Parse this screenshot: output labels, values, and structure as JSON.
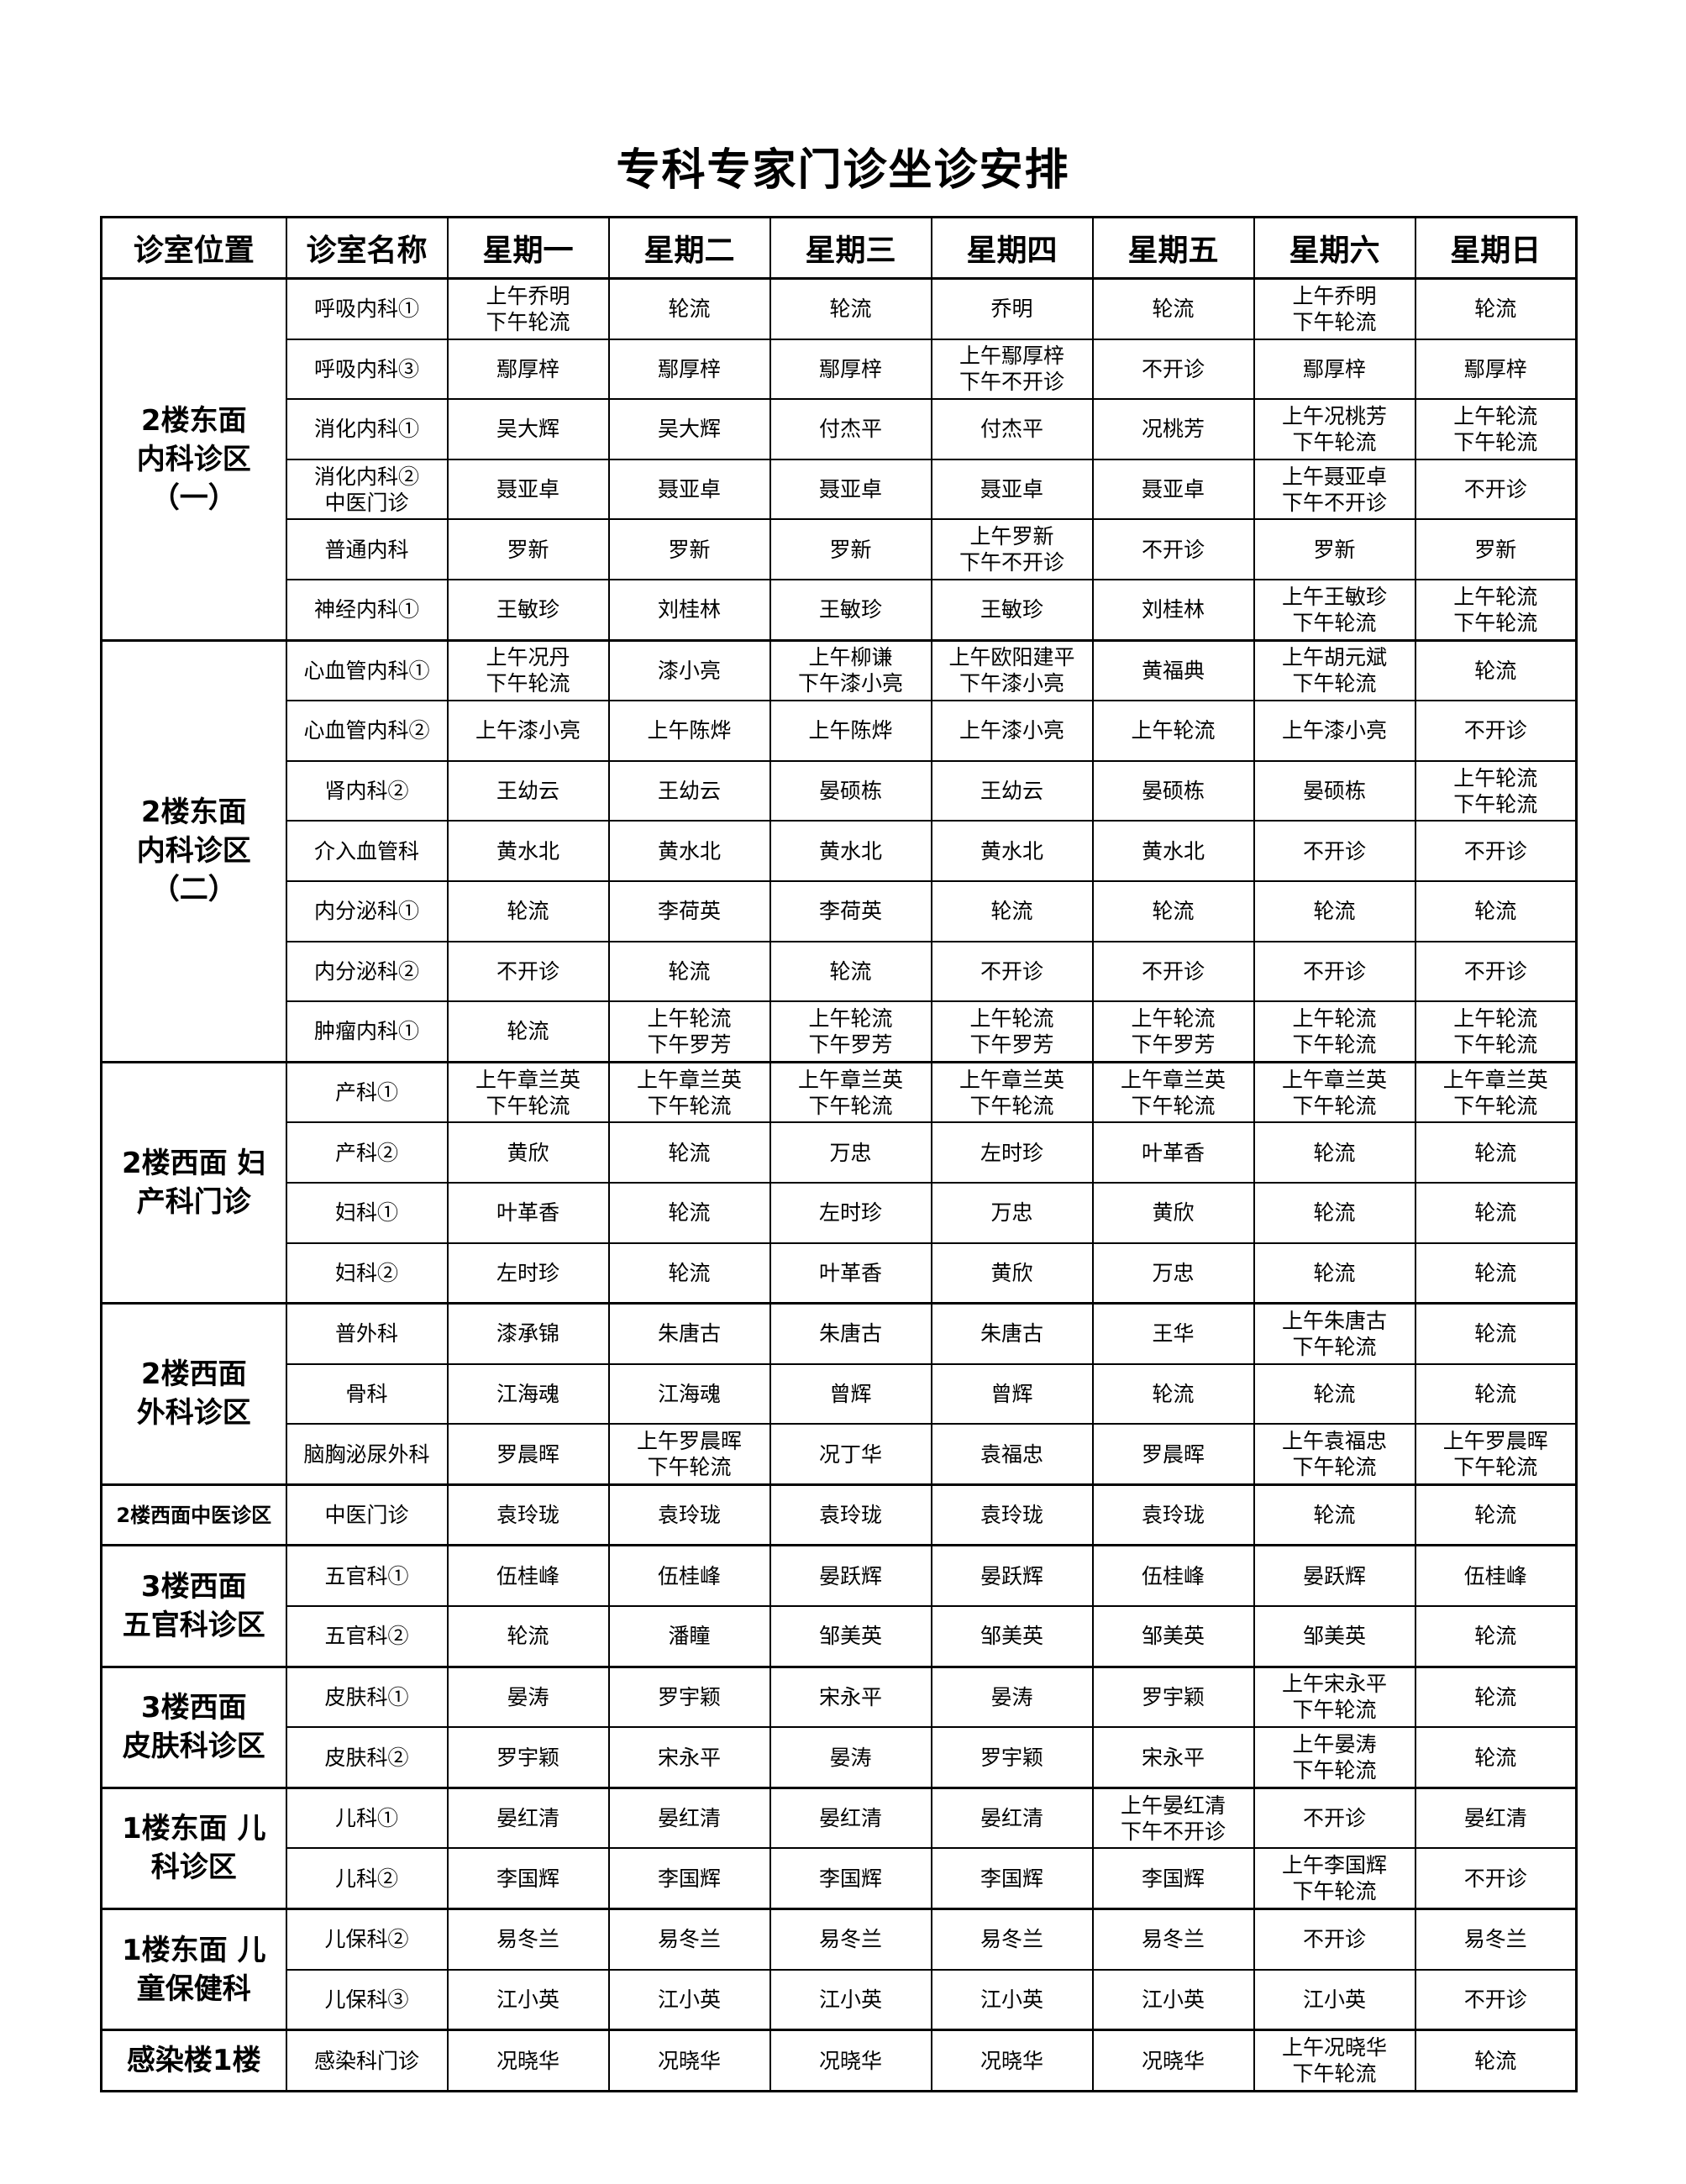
{
  "title": "专科专家门诊坐诊安排",
  "headers": [
    "诊室位置",
    "诊室名称",
    "星期一",
    "星期二",
    "星期三",
    "星期四",
    "星期五",
    "星期六",
    "星期日"
  ],
  "groups": [
    {
      "location": "2楼东面\n内科诊区\n（一）",
      "rows": [
        {
          "name": "呼吸内科①",
          "days": [
            "上午乔明\n下午轮流",
            "轮流",
            "轮流",
            "乔明",
            "轮流",
            "上午乔明\n下午轮流",
            "轮流"
          ]
        },
        {
          "name": "呼吸内科③",
          "days": [
            "鄢厚梓",
            "鄢厚梓",
            "鄢厚梓",
            "上午鄢厚梓\n下午不开诊",
            "不开诊",
            "鄢厚梓",
            "鄢厚梓"
          ]
        },
        {
          "name": "消化内科①",
          "days": [
            "吴大辉",
            "吴大辉",
            "付杰平",
            "付杰平",
            "况桃芳",
            "上午况桃芳\n下午轮流",
            "上午轮流\n下午轮流"
          ]
        },
        {
          "name": "消化内科②\n中医门诊",
          "days": [
            "聂亚卓",
            "聂亚卓",
            "聂亚卓",
            "聂亚卓",
            "聂亚卓",
            "上午聂亚卓\n下午不开诊",
            "不开诊"
          ]
        },
        {
          "name": "普通内科",
          "days": [
            "罗新",
            "罗新",
            "罗新",
            "上午罗新\n下午不开诊",
            "不开诊",
            "罗新",
            "罗新"
          ]
        },
        {
          "name": "神经内科①",
          "days": [
            "王敏珍",
            "刘桂林",
            "王敏珍",
            "王敏珍",
            "刘桂林",
            "上午王敏珍\n下午轮流",
            "上午轮流\n下午轮流"
          ]
        }
      ]
    },
    {
      "location": "2楼东面\n内科诊区\n（二）",
      "rows": [
        {
          "name": "心血管内科①",
          "days": [
            "上午况丹\n下午轮流",
            "漆小亮",
            "上午柳谦\n下午漆小亮",
            "上午欧阳建平\n下午漆小亮",
            "黄福典",
            "上午胡元斌\n下午轮流",
            "轮流"
          ]
        },
        {
          "name": "心血管内科②",
          "days": [
            "上午漆小亮",
            "上午陈烨",
            "上午陈烨",
            "上午漆小亮",
            "上午轮流",
            "上午漆小亮",
            "不开诊"
          ]
        },
        {
          "name": "肾内科②",
          "days": [
            "王幼云",
            "王幼云",
            "晏硕栋",
            "王幼云",
            "晏硕栋",
            "晏硕栋",
            "上午轮流\n下午轮流"
          ]
        },
        {
          "name": "介入血管科",
          "days": [
            "黄水北",
            "黄水北",
            "黄水北",
            "黄水北",
            "黄水北",
            "不开诊",
            "不开诊"
          ]
        },
        {
          "name": "内分泌科①",
          "days": [
            "轮流",
            "李荷英",
            "李荷英",
            "轮流",
            "轮流",
            "轮流",
            "轮流"
          ]
        },
        {
          "name": "内分泌科②",
          "days": [
            "不开诊",
            "轮流",
            "轮流",
            "不开诊",
            "不开诊",
            "不开诊",
            "不开诊"
          ]
        },
        {
          "name": "肿瘤内科①",
          "days": [
            "轮流",
            "上午轮流\n下午罗芳",
            "上午轮流\n下午罗芳",
            "上午轮流\n下午罗芳",
            "上午轮流\n下午罗芳",
            "上午轮流\n下午轮流",
            "上午轮流\n下午轮流"
          ]
        }
      ]
    },
    {
      "location": "2楼西面  妇\n产科门诊",
      "rows": [
        {
          "name": "产科①",
          "days": [
            "上午章兰英\n下午轮流",
            "上午章兰英\n下午轮流",
            "上午章兰英\n下午轮流",
            "上午章兰英\n下午轮流",
            "上午章兰英\n下午轮流",
            "上午章兰英\n下午轮流",
            "上午章兰英\n下午轮流"
          ]
        },
        {
          "name": "产科②",
          "days": [
            "黄欣",
            "轮流",
            "万忠",
            "左时珍",
            "叶革香",
            "轮流",
            "轮流"
          ]
        },
        {
          "name": "妇科①",
          "days": [
            "叶革香",
            "轮流",
            "左时珍",
            "万忠",
            "黄欣",
            "轮流",
            "轮流"
          ]
        },
        {
          "name": "妇科②",
          "days": [
            "左时珍",
            "轮流",
            "叶革香",
            "黄欣",
            "万忠",
            "轮流",
            "轮流"
          ]
        }
      ]
    },
    {
      "location": "2楼西面\n外科诊区",
      "rows": [
        {
          "name": "普外科",
          "days": [
            "漆承锦",
            "朱唐古",
            "朱唐古",
            "朱唐古",
            "王华",
            "上午朱唐古\n下午轮流",
            "轮流"
          ]
        },
        {
          "name": "骨科",
          "days": [
            "江海魂",
            "江海魂",
            "曾辉",
            "曾辉",
            "轮流",
            "轮流",
            "轮流"
          ]
        },
        {
          "name": "脑胸泌尿外科",
          "days": [
            "罗晨晖",
            "上午罗晨晖\n下午轮流",
            "况丁华",
            "袁福忠",
            "罗晨晖",
            "上午袁福忠\n下午轮流",
            "上午罗晨晖\n下午轮流"
          ]
        }
      ]
    },
    {
      "location": "2楼西面中医诊区",
      "small": true,
      "rows": [
        {
          "name": "中医门诊",
          "days": [
            "袁玲珑",
            "袁玲珑",
            "袁玲珑",
            "袁玲珑",
            "袁玲珑",
            "轮流",
            "轮流"
          ]
        }
      ]
    },
    {
      "location": "3楼西面\n五官科诊区",
      "rows": [
        {
          "name": "五官科①",
          "days": [
            "伍桂峰",
            "伍桂峰",
            "晏跃辉",
            "晏跃辉",
            "伍桂峰",
            "晏跃辉",
            "伍桂峰"
          ]
        },
        {
          "name": "五官科②",
          "days": [
            "轮流",
            "潘瞳",
            "邹美英",
            "邹美英",
            "邹美英",
            "邹美英",
            "轮流"
          ]
        }
      ]
    },
    {
      "location": "3楼西面\n皮肤科诊区",
      "rows": [
        {
          "name": "皮肤科①",
          "days": [
            "晏涛",
            "罗宇颖",
            "宋永平",
            "晏涛",
            "罗宇颖",
            "上午宋永平\n下午轮流",
            "轮流"
          ]
        },
        {
          "name": "皮肤科②",
          "days": [
            "罗宇颖",
            "宋永平",
            "晏涛",
            "罗宇颖",
            "宋永平",
            "上午晏涛\n下午轮流",
            "轮流"
          ]
        }
      ]
    },
    {
      "location": "1楼东面  儿\n科诊区",
      "rows": [
        {
          "name": "儿科①",
          "days": [
            "晏红清",
            "晏红清",
            "晏红清",
            "晏红清",
            "上午晏红清\n下午不开诊",
            "不开诊",
            "晏红清"
          ]
        },
        {
          "name": "儿科②",
          "days": [
            "李国辉",
            "李国辉",
            "李国辉",
            "李国辉",
            "李国辉",
            "上午李国辉\n下午轮流",
            "不开诊"
          ]
        }
      ]
    },
    {
      "location": "1楼东面  儿\n童保健科",
      "rows": [
        {
          "name": "儿保科②",
          "days": [
            "易冬兰",
            "易冬兰",
            "易冬兰",
            "易冬兰",
            "易冬兰",
            "不开诊",
            "易冬兰"
          ]
        },
        {
          "name": "儿保科③",
          "days": [
            "江小英",
            "江小英",
            "江小英",
            "江小英",
            "江小英",
            "江小英",
            "不开诊"
          ]
        }
      ]
    },
    {
      "location": "感染楼1楼",
      "rows": [
        {
          "name": "感染科门诊",
          "days": [
            "况晓华",
            "况晓华",
            "况晓华",
            "况晓华",
            "况晓华",
            "上午况晓华\n下午轮流",
            "轮流"
          ]
        }
      ]
    }
  ]
}
